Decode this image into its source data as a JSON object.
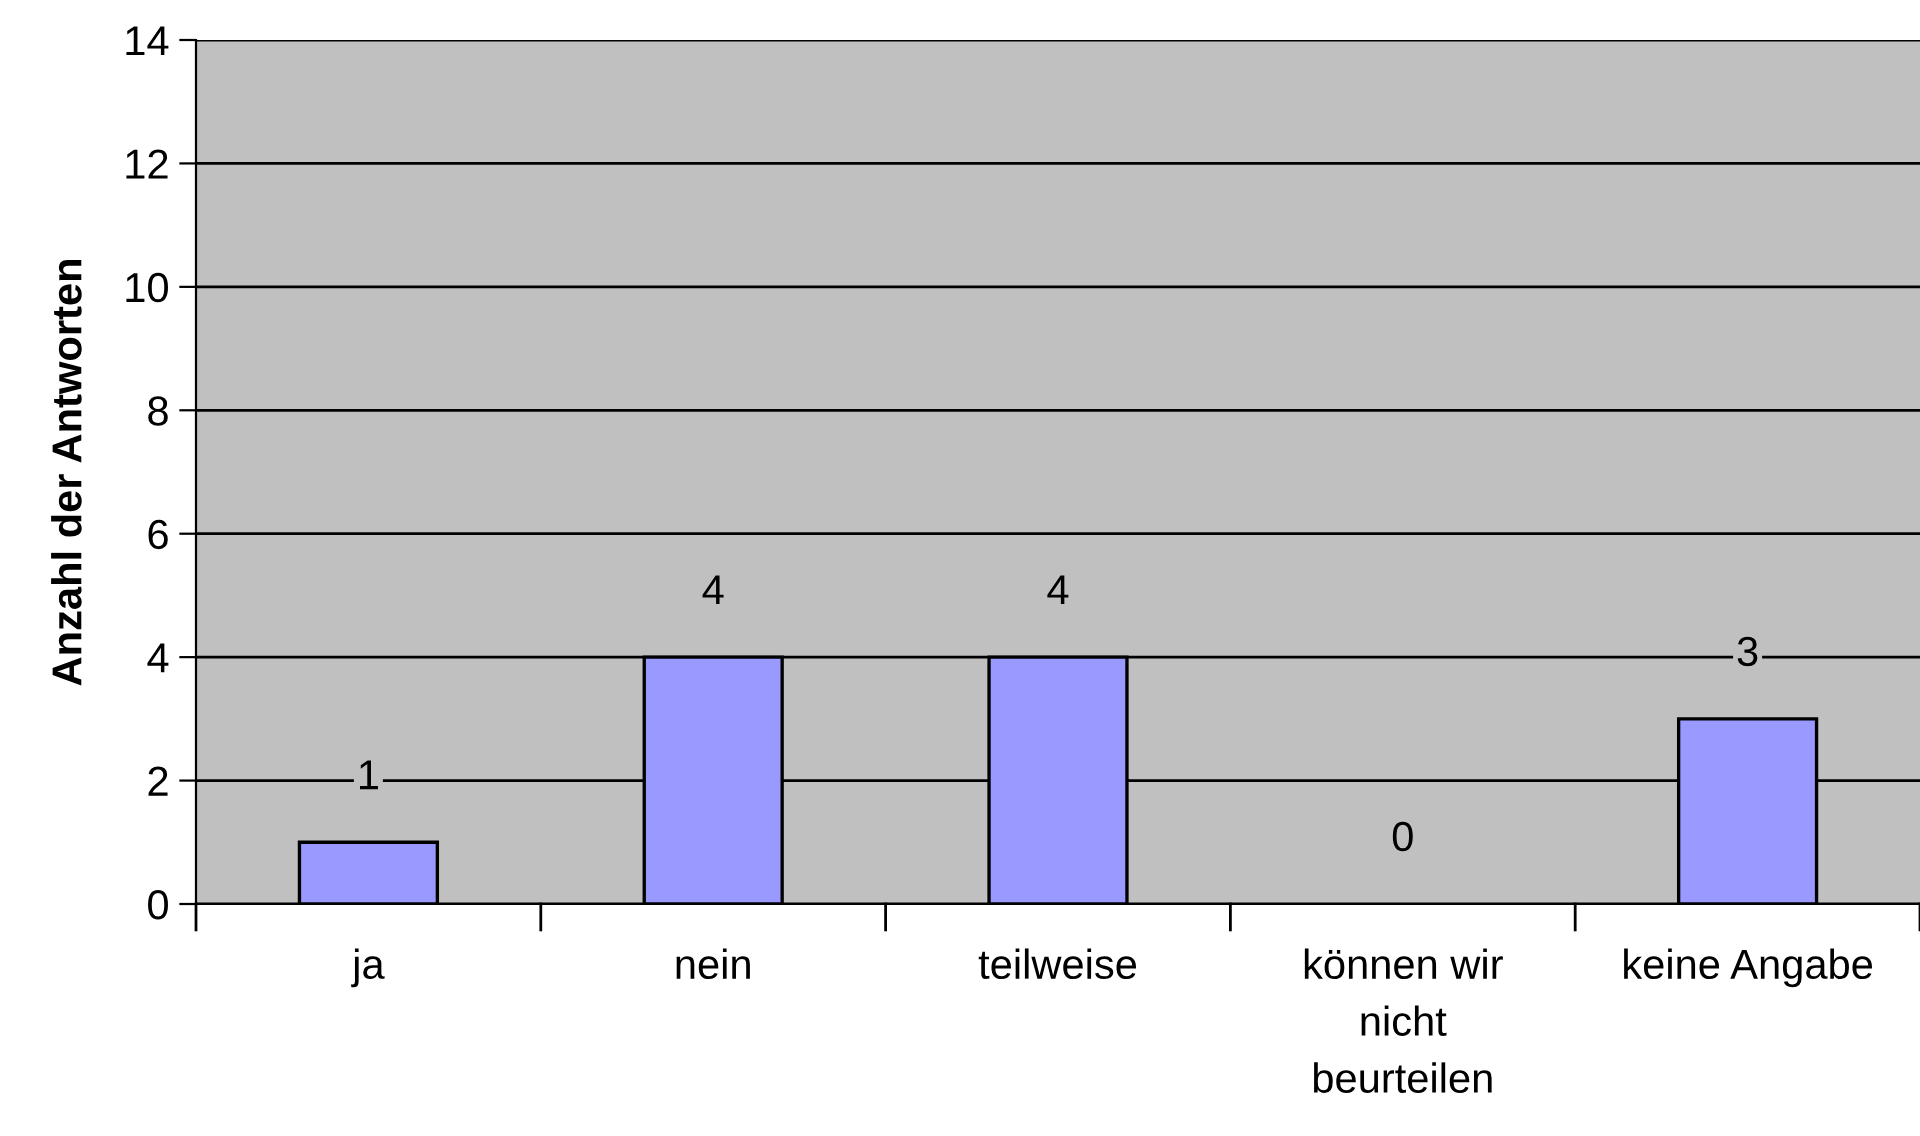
{
  "chart_data": {
    "type": "bar",
    "ylabel": "Anzahl der Antworten",
    "categories": [
      "ja",
      "nein",
      "teilweise",
      "können wir\nnicht\nbeurteilen",
      "keine Angabe"
    ],
    "values": [
      1,
      4,
      4,
      0,
      3
    ],
    "color": "#9999ff",
    "ylim": [
      0,
      14
    ],
    "yticks": [
      0,
      2,
      4,
      6,
      8,
      10,
      12,
      14
    ],
    "grid": "y",
    "data_labels": true
  }
}
